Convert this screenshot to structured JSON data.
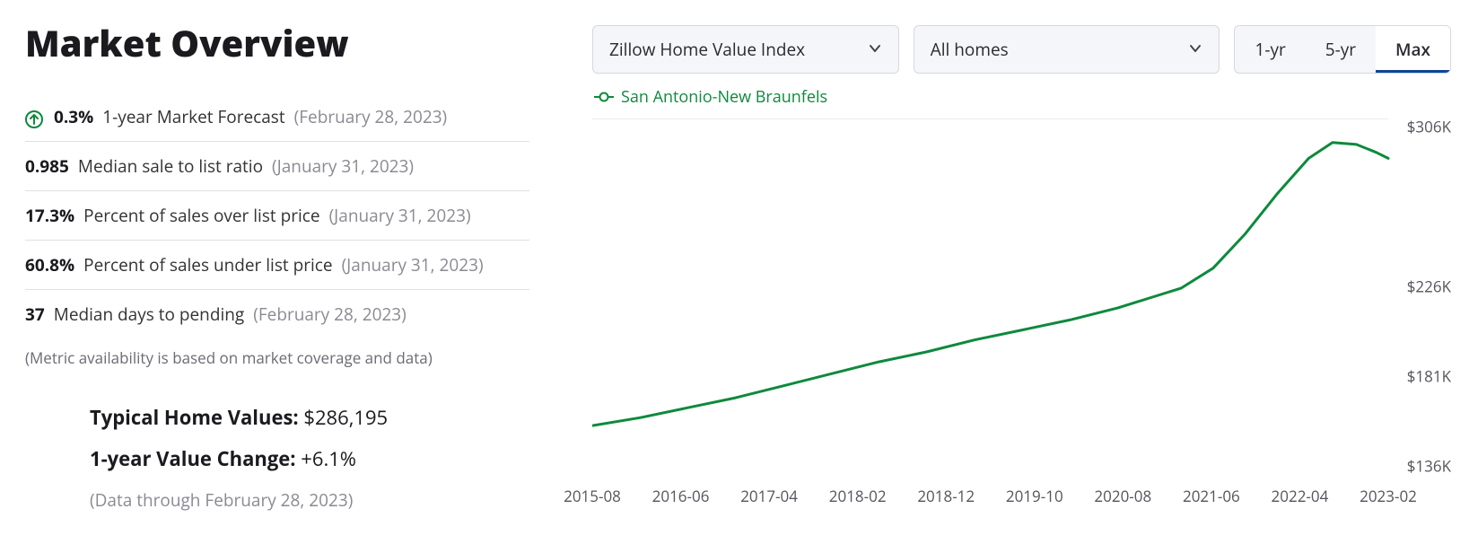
{
  "title": "Market Overview",
  "metrics": [
    {
      "value": "0.3%",
      "label": "1-year Market Forecast",
      "date": "(February 28, 2023)",
      "up_arrow": true
    },
    {
      "value": "0.985",
      "label": "Median sale to list ratio",
      "date": "(January 31, 2023)",
      "up_arrow": false
    },
    {
      "value": "17.3%",
      "label": "Percent of sales over list price",
      "date": "(January 31, 2023)",
      "up_arrow": false
    },
    {
      "value": "60.8%",
      "label": "Percent of sales under list price",
      "date": "(January 31, 2023)",
      "up_arrow": false
    },
    {
      "value": "37",
      "label": "Median days to pending",
      "date": "(February 28, 2023)",
      "up_arrow": false
    }
  ],
  "footnote": "(Metric availability is based on market coverage and data)",
  "typical_values_label": "Typical Home Values:",
  "typical_values_value": "$286,195",
  "yoy_change_label": "1-year Value Change:",
  "yoy_change_value": "+6.1%",
  "data_through": "(Data through February 28, 2023)",
  "dropdowns": {
    "kind": "Zillow Home Value Index",
    "segment": "All homes"
  },
  "range_tabs": [
    "1-yr",
    "5-yr",
    "Max"
  ],
  "range_active": "Max",
  "legend_series": "San Antonio-New Braunfels",
  "chart": {
    "type": "line",
    "line_color": "#0d8a3c",
    "line_width": 3,
    "background_color": "#ffffff",
    "grid_color": "#ececf0",
    "font_color": "#54545c",
    "tick_fontsize": 17,
    "y_ticks": [
      136,
      181,
      226,
      306
    ],
    "y_tick_labels": [
      "$136K",
      "$181K",
      "$226K",
      "$306K"
    ],
    "ylim": [
      130,
      310
    ],
    "x_tick_labels": [
      "2015-08",
      "2016-06",
      "2017-04",
      "2018-02",
      "2018-12",
      "2019-10",
      "2020-08",
      "2021-06",
      "2022-04",
      "2023-02"
    ],
    "series": [
      {
        "x": 0.0,
        "y": 156
      },
      {
        "x": 0.06,
        "y": 160
      },
      {
        "x": 0.12,
        "y": 165
      },
      {
        "x": 0.18,
        "y": 170
      },
      {
        "x": 0.24,
        "y": 176
      },
      {
        "x": 0.3,
        "y": 182
      },
      {
        "x": 0.36,
        "y": 188
      },
      {
        "x": 0.42,
        "y": 193
      },
      {
        "x": 0.48,
        "y": 199
      },
      {
        "x": 0.54,
        "y": 204
      },
      {
        "x": 0.6,
        "y": 209
      },
      {
        "x": 0.66,
        "y": 215
      },
      {
        "x": 0.7,
        "y": 220
      },
      {
        "x": 0.74,
        "y": 225
      },
      {
        "x": 0.78,
        "y": 235
      },
      {
        "x": 0.82,
        "y": 252
      },
      {
        "x": 0.86,
        "y": 272
      },
      {
        "x": 0.9,
        "y": 290
      },
      {
        "x": 0.93,
        "y": 298
      },
      {
        "x": 0.96,
        "y": 297
      },
      {
        "x": 0.985,
        "y": 293
      },
      {
        "x": 1.0,
        "y": 290
      }
    ]
  },
  "colors": {
    "accent_green": "#0d8a3c",
    "accent_blue": "#0d4599",
    "panel_bg": "#f5f6fa",
    "border": "#d7d8de",
    "text_muted": "#8a8a93"
  }
}
